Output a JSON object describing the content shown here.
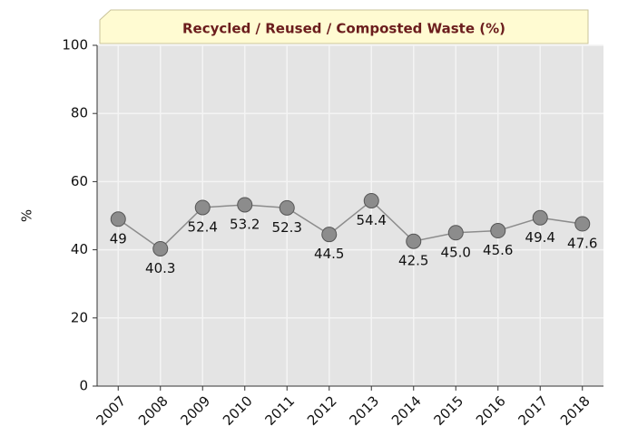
{
  "chart_data": {
    "type": "line",
    "title": "Recycled / Reused / Composted Waste (%)",
    "y_label": "%",
    "categories": [
      "2007",
      "2008",
      "2009",
      "2010",
      "2011",
      "2012",
      "2013",
      "2014",
      "2015",
      "2016",
      "2017",
      "2018"
    ],
    "values": [
      49,
      40.3,
      52.4,
      53.2,
      52.3,
      44.5,
      54.4,
      42.5,
      45.0,
      45.6,
      49.4,
      47.6
    ],
    "value_labels": [
      "49",
      "40.3",
      "52.4",
      "53.2",
      "52.3",
      "44.5",
      "54.4",
      "42.5",
      "45.0",
      "45.6",
      "49.4",
      "47.6"
    ],
    "color": "#8c8c8c",
    "ylim": [
      0,
      100
    ],
    "yticks": [
      0,
      20,
      40,
      60,
      80,
      100
    ],
    "grid": true
  }
}
